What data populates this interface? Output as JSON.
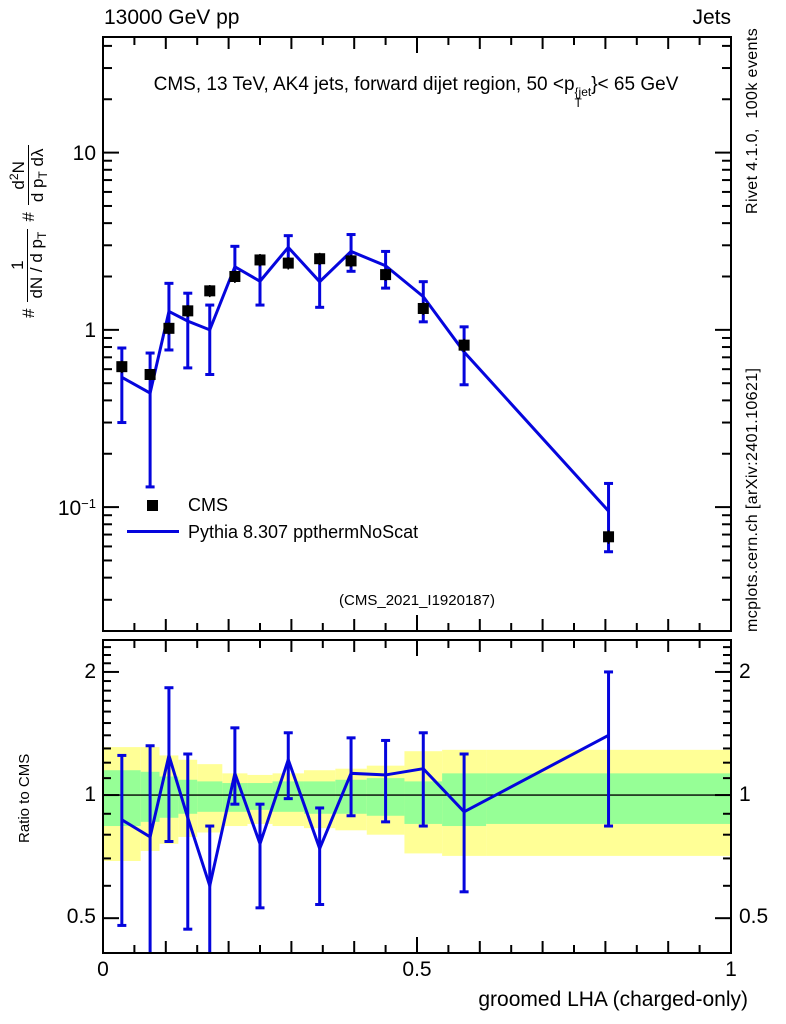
{
  "header": {
    "left": "13000 GeV pp",
    "right": "Jets"
  },
  "panel_title": {
    "pre": "CMS, 13 TeV, AK4 jets, forward dijet region, 50 <p",
    "sup": "{jet",
    "sub": "T",
    "post": "}< 65 GeV"
  },
  "ylabel": {
    "hash1": "#",
    "frac1_num": "1",
    "frac1_den_pre": "dN / d p",
    "frac1_den_sub": "T",
    "hash2": "#",
    "frac2_num_pre": "d",
    "frac2_num_sup": "2",
    "frac2_num_post": "N",
    "frac2_den_pre": "d p",
    "frac2_den_sub": "T",
    "frac2_den_post": " dλ"
  },
  "legend": [
    {
      "marker": "filled-square",
      "label": "CMS"
    },
    {
      "marker": "line",
      "label": "Pythia 8.307 ppthermNoScat"
    }
  ],
  "watermark": "(CMS_2021_I1920187)",
  "side_notes": {
    "top_right": "Rivet 4.1.0,  100k events",
    "bottom_right": "mcplots.cern.ch [arXiv:2401.10621]"
  },
  "axes": {
    "x_title": "groomed LHA (charged-only)",
    "x_ticks": [
      {
        "label": "0",
        "value": 0
      },
      {
        "label": "0.5",
        "value": 0.5
      },
      {
        "label": "1",
        "value": 1
      }
    ],
    "main_y_ticks": [
      {
        "base": "10",
        "exp": "",
        "value": 10
      },
      {
        "base": "1",
        "exp": "",
        "value": 1
      },
      {
        "base": "10",
        "exp": "−1",
        "value": 0.1
      }
    ],
    "ratio_y_ticks": [
      {
        "label": "2",
        "value": 2
      },
      {
        "label": "1",
        "value": 1
      },
      {
        "label": "0.5",
        "value": 0.5
      }
    ],
    "ratio_ylabel": "Ratio to CMS"
  },
  "colors": {
    "model": "#0505dd",
    "data": "#000000",
    "band_yellow": "#ffff96",
    "band_green": "#96ff96",
    "gray_text": "#8c8c8c",
    "watermark": "#a3a3a3"
  },
  "chart_data": [
    {
      "type": "line",
      "panel": "main",
      "xscale": "linear",
      "xlim": [
        0,
        1
      ],
      "yscale": "log",
      "ylim": [
        0.02,
        44.9
      ],
      "x": [
        0.03,
        0.075,
        0.105,
        0.135,
        0.17,
        0.21,
        0.25,
        0.295,
        0.345,
        0.395,
        0.45,
        0.51,
        0.575,
        0.805
      ],
      "series": [
        {
          "name": "CMS",
          "style": "black-squares",
          "y": [
            0.62,
            0.56,
            1.02,
            1.28,
            1.66,
            2.0,
            2.48,
            2.38,
            2.52,
            2.45,
            2.05,
            1.32,
            0.82,
            0.068
          ],
          "yerr_lo": [
            0.57,
            0.52,
            0.94,
            1.18,
            1.53,
            1.84,
            2.28,
            2.19,
            2.32,
            2.25,
            1.89,
            1.21,
            0.75,
            0.062
          ],
          "yerr_hi": [
            0.67,
            0.6,
            1.1,
            1.38,
            1.79,
            2.16,
            2.68,
            2.57,
            2.72,
            2.65,
            2.21,
            1.43,
            0.89,
            0.074
          ]
        },
        {
          "name": "Pythia 8.307 ppthermNoScat",
          "style": "blue-line",
          "y": [
            0.54,
            0.44,
            1.27,
            1.12,
            1.0,
            2.27,
            1.88,
            2.92,
            1.87,
            2.77,
            2.3,
            1.54,
            0.75,
            0.095
          ],
          "yerr_lo": [
            0.3,
            0.13,
            0.77,
            0.61,
            0.56,
            1.92,
            1.38,
            2.36,
            1.34,
            2.14,
            1.72,
            1.11,
            0.49,
            0.056
          ],
          "yerr_hi": [
            0.79,
            0.74,
            1.83,
            1.61,
            1.38,
            2.96,
            2.46,
            3.4,
            2.44,
            3.45,
            2.77,
            1.87,
            1.04,
            0.136
          ]
        }
      ]
    },
    {
      "type": "ratio",
      "panel": "ratio",
      "xscale": "linear",
      "xlim": [
        0,
        1
      ],
      "yscale": "log",
      "ylim": [
        0.411,
        2.394
      ],
      "baseline": 1,
      "bin_edges": [
        0,
        0.06,
        0.09,
        0.12,
        0.15,
        0.19,
        0.23,
        0.27,
        0.32,
        0.37,
        0.42,
        0.48,
        0.54,
        0.61,
        1.0
      ],
      "bands": {
        "yellow_lo": [
          0.69,
          0.73,
          0.76,
          0.79,
          0.81,
          0.84,
          0.85,
          0.84,
          0.83,
          0.82,
          0.8,
          0.72,
          0.71,
          0.71
        ],
        "yellow_hi": [
          1.31,
          1.31,
          1.25,
          1.22,
          1.19,
          1.13,
          1.12,
          1.13,
          1.15,
          1.16,
          1.18,
          1.28,
          1.29,
          1.29
        ],
        "green_lo": [
          0.84,
          0.86,
          0.88,
          0.9,
          0.91,
          0.91,
          0.92,
          0.91,
          0.9,
          0.9,
          0.89,
          0.85,
          0.84,
          0.85
        ],
        "green_hi": [
          1.15,
          1.14,
          1.11,
          1.09,
          1.08,
          1.07,
          1.07,
          1.08,
          1.08,
          1.09,
          1.1,
          1.08,
          1.13,
          1.13
        ]
      },
      "x": [
        0.03,
        0.075,
        0.105,
        0.135,
        0.17,
        0.21,
        0.25,
        0.295,
        0.345,
        0.395,
        0.45,
        0.51,
        0.575,
        0.805
      ],
      "y": [
        0.87,
        0.79,
        1.25,
        0.88,
        0.6,
        1.13,
        0.76,
        1.22,
        0.74,
        1.13,
        1.12,
        1.16,
        0.91,
        1.4
      ],
      "yerr_lo": [
        0.48,
        0.22,
        0.77,
        0.47,
        0.34,
        0.95,
        0.53,
        0.98,
        0.54,
        0.89,
        0.86,
        0.84,
        0.58,
        0.84
      ],
      "yerr_hi": [
        1.25,
        1.32,
        1.83,
        1.26,
        0.84,
        1.46,
        0.95,
        1.42,
        0.93,
        1.38,
        1.36,
        1.42,
        1.26,
        2.0
      ]
    }
  ]
}
